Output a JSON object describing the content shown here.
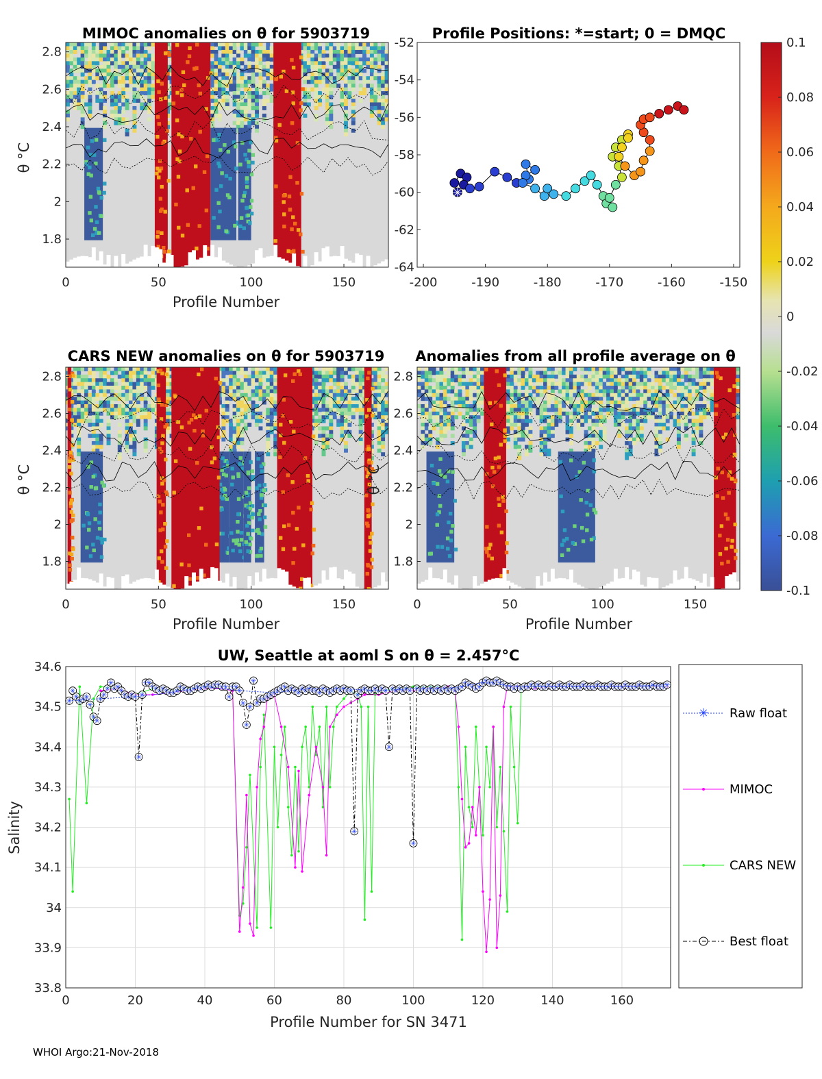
{
  "float_id": "5903719",
  "footer": "WHOI Argo:21-Nov-2018",
  "colors": {
    "raw": "#1f3fff",
    "mimoc": "#ff00ff",
    "cars": "#22ee22",
    "best": "#000000",
    "anom_pos": "#c00f1c",
    "anom_neg": "#3b5b9e",
    "anom_zero": "#d9d9d9"
  },
  "chart_data": [
    {
      "id": "mimoc",
      "type": "heatmap",
      "title": "MIMOC anomalies on θ  for 5903719",
      "xlabel": "Profile Number",
      "ylabel": "θ °C",
      "xticks": [
        "0",
        "50",
        "100",
        "150"
      ],
      "yticks": [
        "1.8",
        "2",
        "2.2",
        "2.4",
        "2.6",
        "2.8"
      ],
      "xlim": [
        0,
        174
      ],
      "ylim": [
        1.65,
        2.85
      ],
      "warm_bands": [
        [
          48,
          55
        ],
        [
          57,
          78
        ],
        [
          112,
          127
        ]
      ],
      "cold_bands": [
        [
          10,
          20
        ],
        [
          78,
          92
        ],
        [
          93,
          100
        ]
      ]
    },
    {
      "id": "positions",
      "type": "scatter",
      "title": "Profile Positions: *=start; 0 = DMQC",
      "xlabel": "",
      "ylabel": "",
      "xticks": [
        "-200",
        "-190",
        "-180",
        "-170",
        "-160",
        "-150"
      ],
      "yticks": [
        "-52",
        "-54",
        "-56",
        "-58",
        "-60",
        "-62",
        "-64"
      ],
      "xlim": [
        -201,
        -149
      ],
      "ylim": [
        -64,
        -52
      ],
      "start": [
        -194.5,
        -60
      ],
      "lon": [
        -194.5,
        -195,
        -194,
        -193,
        -193.5,
        -192.5,
        -191,
        -188.5,
        -186.5,
        -185,
        -183,
        -183.5,
        -182,
        -183.5,
        -184,
        -182,
        -180.5,
        -180,
        -179,
        -177,
        -175.5,
        -174,
        -173,
        -172,
        -171,
        -170.5,
        -169.5,
        -170,
        -169,
        -168,
        -168.5,
        -169.5,
        -169,
        -168,
        -167,
        -167,
        -168,
        -168.5,
        -167.5,
        -166,
        -165,
        -164.5,
        -163.5,
        -163.5,
        -164.5,
        -165,
        -164.5,
        -163.5,
        -162,
        -160.5,
        -159,
        -158
      ],
      "lat": [
        -60,
        -59.5,
        -59,
        -59.2,
        -59.6,
        -59.8,
        -59.7,
        -58.9,
        -59.2,
        -59.5,
        -59.3,
        -58.5,
        -58.8,
        -59.1,
        -59.5,
        -59.8,
        -60.2,
        -59.8,
        -60.1,
        -60.2,
        -59.8,
        -59.4,
        -59.1,
        -59.6,
        -60.2,
        -60.6,
        -60.8,
        -60.3,
        -59.6,
        -59.2,
        -58.6,
        -58.1,
        -57.6,
        -57.2,
        -56.9,
        -57.1,
        -57.6,
        -58.1,
        -58.6,
        -59.1,
        -58.9,
        -58.3,
        -57.8,
        -57.2,
        -56.8,
        -56.4,
        -56.1,
        -56,
        -55.8,
        -55.6,
        -55.4,
        -55.6
      ]
    },
    {
      "id": "cars",
      "type": "heatmap",
      "title": "CARS NEW anomalies on θ for 5903719",
      "xlabel": "Profile Number",
      "ylabel": "θ °C",
      "xticks": [
        "0",
        "50",
        "100",
        "150"
      ],
      "yticks": [
        "1.8",
        "2",
        "2.2",
        "2.4",
        "2.6",
        "2.8"
      ],
      "xlim": [
        0,
        174
      ],
      "ylim": [
        1.65,
        2.85
      ],
      "warm_bands": [
        [
          1,
          3
        ],
        [
          49,
          54
        ],
        [
          57,
          83
        ],
        [
          114,
          133
        ],
        [
          161,
          165
        ]
      ],
      "cold_bands": [
        [
          8,
          20
        ],
        [
          82,
          88
        ],
        [
          88,
          96
        ],
        [
          96,
          100
        ],
        [
          102,
          107
        ]
      ]
    },
    {
      "id": "allavg",
      "type": "heatmap",
      "title": "Anomalies from all profile average on θ",
      "xlabel": "Profile Number",
      "ylabel": "θ °C",
      "xticks": [
        "0",
        "50",
        "100",
        "150"
      ],
      "yticks": [
        "1.8",
        "2",
        "2.2",
        "2.4",
        "2.6",
        "2.8"
      ],
      "xlim": [
        0,
        174
      ],
      "ylim": [
        1.65,
        2.85
      ],
      "warm_bands": [
        [
          36,
          48
        ],
        [
          160,
          172
        ]
      ],
      "cold_bands": [
        [
          5,
          20
        ],
        [
          76,
          96
        ]
      ]
    },
    {
      "id": "colorbar",
      "type": "colorbar",
      "ticks": [
        "0.1",
        "0.08",
        "0.06",
        "0.04",
        "0.02",
        "0",
        "-0.02",
        "-0.04",
        "-0.06",
        "-0.08",
        "-0.1"
      ],
      "range": [
        -0.1,
        0.1
      ]
    },
    {
      "id": "salinity",
      "type": "line",
      "title": "UW, Seattle at aoml S on θ = 2.457°C",
      "xlabel": "Profile Number for SN 3471",
      "ylabel": "Salinity",
      "xticks": [
        "0",
        "20",
        "40",
        "60",
        "80",
        "100",
        "120",
        "140",
        "160"
      ],
      "yticks": [
        "34.6",
        "34.5",
        "34.4",
        "34.3",
        "34.2",
        "34.1",
        "34",
        "33.9",
        "33.8"
      ],
      "xlim": [
        0,
        174
      ],
      "ylim": [
        33.8,
        34.6
      ],
      "legend": [
        "Raw float",
        "MIMOC",
        "CARS NEW",
        "Best float"
      ],
      "series": [
        {
          "name": "Best float",
          "x": [
            1,
            2,
            3,
            4,
            5,
            6,
            7,
            8,
            9,
            10,
            11,
            12,
            13,
            14,
            15,
            16,
            17,
            18,
            19,
            20,
            21,
            22,
            23,
            24,
            25,
            26,
            27,
            28,
            29,
            30,
            31,
            32,
            33,
            34,
            35,
            36,
            37,
            38,
            39,
            40,
            41,
            42,
            43,
            44,
            45,
            46,
            47,
            48,
            49,
            50,
            51,
            52,
            53,
            54,
            55,
            56,
            57,
            58,
            59,
            60,
            61,
            62,
            63,
            64,
            65,
            66,
            67,
            68,
            69,
            70,
            71,
            72,
            73,
            74,
            75,
            76,
            77,
            78,
            79,
            80,
            81,
            82,
            83,
            84,
            85,
            86,
            87,
            88,
            89,
            90,
            91,
            92,
            93,
            94,
            95,
            96,
            97,
            98,
            99,
            100,
            101,
            102,
            103,
            104,
            105,
            106,
            107,
            108,
            109,
            110,
            111,
            112,
            113,
            114,
            115,
            116,
            117,
            118,
            119,
            120,
            121,
            122,
            123,
            124,
            125,
            126,
            127,
            128,
            129,
            130,
            131,
            132,
            133,
            134,
            135,
            136,
            137,
            138,
            139,
            140,
            141,
            142,
            143,
            144,
            145,
            146,
            147,
            148,
            149,
            150,
            151,
            152,
            153,
            154,
            155,
            156,
            157,
            158,
            159,
            160,
            161,
            162,
            163,
            164,
            165,
            166,
            167,
            168,
            169,
            170,
            171,
            172,
            173
          ],
          "y": [
            34.515,
            34.54,
            34.525,
            34.515,
            34.52,
            34.525,
            34.505,
            34.475,
            34.465,
            34.52,
            34.53,
            34.545,
            34.56,
            34.545,
            34.55,
            34.54,
            34.53,
            34.525,
            34.53,
            34.525,
            34.375,
            34.53,
            34.56,
            34.56,
            34.55,
            34.545,
            34.54,
            34.545,
            34.54,
            34.535,
            34.535,
            34.54,
            34.55,
            34.545,
            34.54,
            34.54,
            34.545,
            34.55,
            34.545,
            34.55,
            34.555,
            34.55,
            34.555,
            34.555,
            34.55,
            34.55,
            34.525,
            34.55,
            34.55,
            34.54,
            34.51,
            34.455,
            34.5,
            34.565,
            34.51,
            34.52,
            34.52,
            34.525,
            34.53,
            34.535,
            34.54,
            34.545,
            34.55,
            34.54,
            34.545,
            34.54,
            34.535,
            34.545,
            34.54,
            34.545,
            34.54,
            34.54,
            34.535,
            34.545,
            34.54,
            34.535,
            34.54,
            34.545,
            34.54,
            34.545,
            34.54,
            34.54,
            34.19,
            34.53,
            34.54,
            34.545,
            34.54,
            34.54,
            34.545,
            34.54,
            34.545,
            34.54,
            34.4,
            34.545,
            34.54,
            34.545,
            34.54,
            34.545,
            34.54,
            34.16,
            34.545,
            34.54,
            34.545,
            34.54,
            34.545,
            34.54,
            34.545,
            34.54,
            34.545,
            34.54,
            34.545,
            34.54,
            34.545,
            34.55,
            34.56,
            34.555,
            34.55,
            34.545,
            34.55,
            34.56,
            34.565,
            34.56,
            34.56,
            34.565,
            34.56,
            34.555,
            34.55,
            34.55,
            34.545,
            34.55,
            34.545,
            34.55,
            34.55,
            34.555,
            34.55,
            34.555,
            34.55,
            34.55,
            34.555,
            34.55,
            34.55,
            34.555,
            34.55,
            34.55,
            34.555,
            34.55,
            34.55,
            34.55,
            34.555,
            34.55,
            34.55,
            34.55,
            34.555,
            34.55,
            34.55,
            34.55,
            34.555,
            34.55,
            34.55,
            34.55,
            34.555,
            34.55,
            34.55,
            34.55,
            34.555,
            34.55,
            34.55,
            34.55,
            34.555,
            34.55,
            34.55,
            34.55,
            34.555
          ]
        },
        {
          "name": "MIMOC",
          "x": [
            10,
            15,
            20,
            25,
            30,
            35,
            40,
            45,
            48,
            50,
            51,
            52,
            53,
            54,
            55,
            56,
            57,
            58,
            60,
            62,
            64,
            66,
            67,
            68,
            70,
            72,
            74,
            75,
            76,
            78,
            80,
            82,
            84,
            86,
            90,
            95,
            100,
            105,
            110,
            112,
            113,
            114,
            115,
            116,
            117,
            118,
            119,
            120,
            121,
            122,
            123,
            124,
            125,
            126,
            127,
            128,
            129,
            130,
            135,
            140,
            150,
            160,
            170,
            173
          ],
          "y": [
            34.54,
            34.545,
            34.53,
            34.53,
            34.535,
            34.54,
            34.545,
            34.545,
            34.54,
            33.94,
            34.05,
            34.28,
            33.96,
            33.93,
            34.3,
            34.42,
            34.45,
            34.52,
            34.53,
            34.45,
            34.35,
            34.1,
            34.34,
            34.09,
            34.28,
            34.4,
            34.3,
            34.13,
            34.45,
            34.48,
            34.5,
            34.51,
            34.52,
            34.53,
            34.53,
            34.54,
            34.54,
            34.545,
            34.55,
            34.54,
            34.45,
            34.27,
            34.15,
            34.16,
            34.25,
            34.18,
            34.3,
            34.04,
            33.89,
            34.02,
            34.45,
            33.9,
            34.03,
            34.5,
            34.55,
            34.55,
            34.55,
            34.55,
            34.545,
            34.55,
            34.55,
            34.55,
            34.55,
            34.55
          ]
        },
        {
          "name": "CARS NEW",
          "x": [
            1,
            2,
            4,
            6,
            8,
            10,
            15,
            20,
            25,
            30,
            35,
            40,
            45,
            48,
            50,
            51,
            52,
            53,
            55,
            56,
            57,
            59,
            60,
            61,
            62,
            63,
            64,
            65,
            66,
            67,
            68,
            69,
            70,
            71,
            72,
            73,
            74,
            75,
            76,
            77,
            78,
            80,
            82,
            84,
            85,
            86,
            87,
            88,
            89,
            90,
            95,
            100,
            105,
            110,
            112,
            113,
            114,
            115,
            116,
            117,
            118,
            119,
            120,
            121,
            122,
            123,
            124,
            125,
            126,
            127,
            128,
            129,
            130,
            131,
            140,
            150,
            160,
            173
          ],
          "y": [
            34.27,
            34.04,
            34.55,
            34.26,
            34.52,
            34.55,
            34.545,
            34.53,
            34.545,
            34.54,
            34.545,
            34.55,
            34.545,
            34.54,
            33.98,
            34.01,
            34.15,
            34.33,
            33.95,
            34.35,
            34.48,
            33.95,
            34.4,
            34.2,
            34.38,
            34.45,
            34.25,
            34.13,
            34.35,
            34.14,
            34.4,
            34.45,
            34.3,
            34.5,
            34.38,
            34.45,
            34.25,
            34.5,
            34.3,
            34.45,
            34.5,
            34.52,
            34.54,
            34.53,
            34.5,
            33.97,
            34.5,
            34.04,
            34.53,
            34.54,
            34.545,
            34.55,
            34.55,
            34.55,
            34.54,
            34.3,
            33.92,
            34.4,
            34.25,
            34.2,
            34.45,
            34.3,
            34.18,
            34.4,
            34.3,
            34.45,
            34.2,
            34.35,
            34.19,
            33.99,
            34.5,
            34.35,
            34.21,
            34.55,
            34.55,
            34.55,
            34.55,
            34.55
          ]
        },
        {
          "name": "Raw float",
          "x": [
            1,
            10,
            20,
            30,
            40,
            50,
            60,
            70,
            80,
            90,
            100,
            110,
            120,
            130,
            140,
            150,
            160,
            173
          ],
          "y": [
            34.515,
            34.52,
            34.525,
            34.535,
            34.55,
            34.54,
            34.535,
            34.545,
            34.545,
            34.54,
            34.545,
            34.545,
            34.56,
            34.55,
            34.55,
            34.55,
            34.55,
            34.555
          ]
        }
      ]
    }
  ]
}
